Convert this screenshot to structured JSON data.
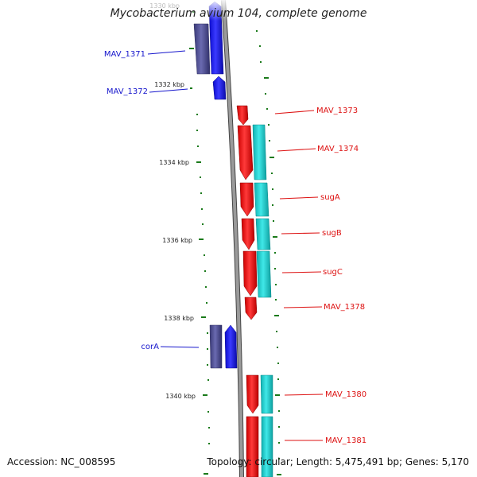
{
  "title": "Mycobacterium avium 104, complete genome",
  "footer": {
    "accession": "Accession: NC_008595",
    "summary": "Topology: circular; Length: 5,475,491 bp; Genes: 5,170"
  },
  "colors": {
    "forward_gene": "#1a1aee",
    "forward_gene_alt": "#4a4a90",
    "reverse_gene": "#ee1111",
    "reverse_gene_alt": "#11c8c8",
    "backbone": "#888888",
    "tick": "#1a7a1a",
    "forward_label": "#1515cc",
    "reverse_label": "#dd1111"
  },
  "scale_labels": [
    "1330 kbp",
    "1332 kbp",
    "1334 kbp",
    "1336 kbp",
    "1338 kbp",
    "1340 kbp"
  ],
  "genes": {
    "forward": [
      "MAV_1371",
      "MAV_1372",
      "corA"
    ],
    "reverse": [
      "MAV_1373",
      "MAV_1374",
      "sugA",
      "sugB",
      "sugC",
      "MAV_1378",
      "MAV_1380",
      "MAV_1381"
    ]
  }
}
